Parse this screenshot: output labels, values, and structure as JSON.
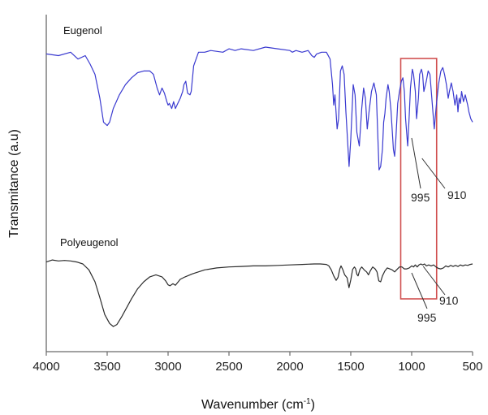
{
  "chart_data": {
    "type": "line",
    "xlabel": "Wavenumber (cm",
    "xlabel_sup": "-1",
    "xlabel_close": ")",
    "ylabel": "Transmitance (a.u)",
    "xlim": [
      4000,
      500
    ],
    "x_reversed": true,
    "xticks": [
      "4000",
      "3500",
      "3000",
      "2500",
      "2000",
      "1500",
      "1000",
      "500"
    ],
    "yticks_shown": false,
    "grid": false,
    "legend": "none",
    "series": [
      {
        "name": "Eugenol",
        "color": "#3a3ad0",
        "points": [
          [
            4000,
            0.96
          ],
          [
            3900,
            0.95
          ],
          [
            3800,
            0.97
          ],
          [
            3740,
            0.93
          ],
          [
            3680,
            0.95
          ],
          [
            3640,
            0.9
          ],
          [
            3600,
            0.84
          ],
          [
            3560,
            0.7
          ],
          [
            3530,
            0.56
          ],
          [
            3500,
            0.54
          ],
          [
            3480,
            0.56
          ],
          [
            3450,
            0.64
          ],
          [
            3400,
            0.72
          ],
          [
            3350,
            0.78
          ],
          [
            3300,
            0.82
          ],
          [
            3250,
            0.85
          ],
          [
            3200,
            0.86
          ],
          [
            3150,
            0.86
          ],
          [
            3120,
            0.84
          ],
          [
            3090,
            0.76
          ],
          [
            3070,
            0.72
          ],
          [
            3050,
            0.76
          ],
          [
            3030,
            0.73
          ],
          [
            3010,
            0.68
          ],
          [
            3000,
            0.66
          ],
          [
            2990,
            0.67
          ],
          [
            2970,
            0.64
          ],
          [
            2955,
            0.68
          ],
          [
            2940,
            0.64
          ],
          [
            2920,
            0.67
          ],
          [
            2900,
            0.7
          ],
          [
            2880,
            0.74
          ],
          [
            2870,
            0.78
          ],
          [
            2855,
            0.8
          ],
          [
            2840,
            0.73
          ],
          [
            2820,
            0.72
          ],
          [
            2810,
            0.74
          ],
          [
            2790,
            0.89
          ],
          [
            2750,
            0.97
          ],
          [
            2700,
            0.97
          ],
          [
            2650,
            0.98
          ],
          [
            2550,
            0.97
          ],
          [
            2500,
            0.99
          ],
          [
            2450,
            0.98
          ],
          [
            2400,
            0.99
          ],
          [
            2300,
            0.98
          ],
          [
            2200,
            1.0
          ],
          [
            2100,
            0.99
          ],
          [
            2000,
            0.98
          ],
          [
            1980,
            0.97
          ],
          [
            1950,
            0.98
          ],
          [
            1900,
            0.97
          ],
          [
            1850,
            0.98
          ],
          [
            1820,
            0.95
          ],
          [
            1800,
            0.94
          ],
          [
            1780,
            0.96
          ],
          [
            1740,
            0.97
          ],
          [
            1700,
            0.97
          ],
          [
            1670,
            0.93
          ],
          [
            1650,
            0.78
          ],
          [
            1640,
            0.66
          ],
          [
            1630,
            0.72
          ],
          [
            1612,
            0.52
          ],
          [
            1600,
            0.58
          ],
          [
            1585,
            0.86
          ],
          [
            1570,
            0.89
          ],
          [
            1555,
            0.84
          ],
          [
            1540,
            0.62
          ],
          [
            1514,
            0.3
          ],
          [
            1500,
            0.46
          ],
          [
            1480,
            0.78
          ],
          [
            1465,
            0.72
          ],
          [
            1450,
            0.5
          ],
          [
            1430,
            0.42
          ],
          [
            1410,
            0.64
          ],
          [
            1395,
            0.76
          ],
          [
            1380,
            0.7
          ],
          [
            1365,
            0.52
          ],
          [
            1350,
            0.62
          ],
          [
            1330,
            0.74
          ],
          [
            1310,
            0.79
          ],
          [
            1290,
            0.72
          ],
          [
            1268,
            0.28
          ],
          [
            1255,
            0.3
          ],
          [
            1240,
            0.4
          ],
          [
            1230,
            0.56
          ],
          [
            1220,
            0.61
          ],
          [
            1210,
            0.7
          ],
          [
            1195,
            0.78
          ],
          [
            1185,
            0.74
          ],
          [
            1170,
            0.63
          ],
          [
            1150,
            0.4
          ],
          [
            1140,
            0.36
          ],
          [
            1130,
            0.46
          ],
          [
            1115,
            0.67
          ],
          [
            1100,
            0.74
          ],
          [
            1085,
            0.8
          ],
          [
            1072,
            0.82
          ],
          [
            1060,
            0.74
          ],
          [
            1050,
            0.58
          ],
          [
            1033,
            0.42
          ],
          [
            1020,
            0.6
          ],
          [
            1010,
            0.76
          ],
          [
            995,
            0.87
          ],
          [
            985,
            0.84
          ],
          [
            970,
            0.74
          ],
          [
            960,
            0.58
          ],
          [
            945,
            0.7
          ],
          [
            935,
            0.84
          ],
          [
            920,
            0.87
          ],
          [
            910,
            0.84
          ],
          [
            900,
            0.74
          ],
          [
            880,
            0.8
          ],
          [
            865,
            0.86
          ],
          [
            850,
            0.84
          ],
          [
            830,
            0.66
          ],
          [
            815,
            0.52
          ],
          [
            800,
            0.64
          ],
          [
            780,
            0.78
          ],
          [
            760,
            0.86
          ],
          [
            745,
            0.88
          ],
          [
            730,
            0.84
          ],
          [
            715,
            0.78
          ],
          [
            700,
            0.7
          ],
          [
            690,
            0.74
          ],
          [
            675,
            0.79
          ],
          [
            660,
            0.74
          ],
          [
            645,
            0.66
          ],
          [
            630,
            0.72
          ],
          [
            620,
            0.62
          ],
          [
            610,
            0.7
          ],
          [
            600,
            0.67
          ],
          [
            590,
            0.74
          ],
          [
            575,
            0.68
          ],
          [
            560,
            0.72
          ],
          [
            540,
            0.66
          ],
          [
            530,
            0.62
          ],
          [
            515,
            0.58
          ],
          [
            500,
            0.56
          ]
        ]
      },
      {
        "name": "Polyeugenol",
        "color": "#2b2b2b",
        "points": [
          [
            4000,
            0.31
          ],
          [
            3950,
            0.314
          ],
          [
            3900,
            0.312
          ],
          [
            3850,
            0.313
          ],
          [
            3800,
            0.312
          ],
          [
            3750,
            0.31
          ],
          [
            3700,
            0.306
          ],
          [
            3650,
            0.294
          ],
          [
            3600,
            0.27
          ],
          [
            3560,
            0.238
          ],
          [
            3520,
            0.204
          ],
          [
            3480,
            0.186
          ],
          [
            3450,
            0.18
          ],
          [
            3420,
            0.184
          ],
          [
            3380,
            0.2
          ],
          [
            3340,
            0.218
          ],
          [
            3300,
            0.236
          ],
          [
            3250,
            0.256
          ],
          [
            3200,
            0.27
          ],
          [
            3150,
            0.28
          ],
          [
            3100,
            0.284
          ],
          [
            3050,
            0.28
          ],
          [
            3020,
            0.272
          ],
          [
            3000,
            0.264
          ],
          [
            2985,
            0.262
          ],
          [
            2960,
            0.266
          ],
          [
            2940,
            0.263
          ],
          [
            2920,
            0.269
          ],
          [
            2900,
            0.275
          ],
          [
            2860,
            0.28
          ],
          [
            2800,
            0.286
          ],
          [
            2700,
            0.294
          ],
          [
            2600,
            0.298
          ],
          [
            2500,
            0.3
          ],
          [
            2400,
            0.301
          ],
          [
            2300,
            0.302
          ],
          [
            2200,
            0.302
          ],
          [
            2100,
            0.303
          ],
          [
            2000,
            0.304
          ],
          [
            1900,
            0.305
          ],
          [
            1800,
            0.306
          ],
          [
            1750,
            0.306
          ],
          [
            1700,
            0.305
          ],
          [
            1680,
            0.302
          ],
          [
            1660,
            0.294
          ],
          [
            1640,
            0.282
          ],
          [
            1620,
            0.273
          ],
          [
            1605,
            0.279
          ],
          [
            1590,
            0.296
          ],
          [
            1580,
            0.302
          ],
          [
            1565,
            0.294
          ],
          [
            1550,
            0.284
          ],
          [
            1530,
            0.278
          ],
          [
            1515,
            0.258
          ],
          [
            1500,
            0.274
          ],
          [
            1485,
            0.295
          ],
          [
            1470,
            0.3
          ],
          [
            1460,
            0.296
          ],
          [
            1450,
            0.285
          ],
          [
            1440,
            0.282
          ],
          [
            1425,
            0.295
          ],
          [
            1410,
            0.3
          ],
          [
            1390,
            0.294
          ],
          [
            1370,
            0.29
          ],
          [
            1355,
            0.284
          ],
          [
            1340,
            0.292
          ],
          [
            1320,
            0.3
          ],
          [
            1300,
            0.296
          ],
          [
            1285,
            0.29
          ],
          [
            1270,
            0.272
          ],
          [
            1255,
            0.27
          ],
          [
            1240,
            0.282
          ],
          [
            1220,
            0.292
          ],
          [
            1200,
            0.298
          ],
          [
            1180,
            0.296
          ],
          [
            1160,
            0.294
          ],
          [
            1140,
            0.29
          ],
          [
            1120,
            0.295
          ],
          [
            1100,
            0.3
          ],
          [
            1080,
            0.3
          ],
          [
            1060,
            0.296
          ],
          [
            1040,
            0.296
          ],
          [
            1020,
            0.298
          ],
          [
            1000,
            0.302
          ],
          [
            985,
            0.3
          ],
          [
            970,
            0.304
          ],
          [
            955,
            0.3
          ],
          [
            940,
            0.304
          ],
          [
            925,
            0.306
          ],
          [
            910,
            0.304
          ],
          [
            895,
            0.306
          ],
          [
            880,
            0.302
          ],
          [
            860,
            0.304
          ],
          [
            840,
            0.302
          ],
          [
            820,
            0.304
          ],
          [
            800,
            0.3
          ],
          [
            780,
            0.297
          ],
          [
            760,
            0.296
          ],
          [
            740,
            0.298
          ],
          [
            720,
            0.302
          ],
          [
            700,
            0.3
          ],
          [
            680,
            0.303
          ],
          [
            660,
            0.301
          ],
          [
            640,
            0.303
          ],
          [
            620,
            0.301
          ],
          [
            600,
            0.304
          ],
          [
            580,
            0.302
          ],
          [
            560,
            0.304
          ],
          [
            540,
            0.303
          ],
          [
            520,
            0.305
          ],
          [
            500,
            0.306
          ]
        ]
      }
    ],
    "annotations": {
      "box_x_range": [
        1090,
        795
      ],
      "labels": [
        {
          "text": "995",
          "series": "Eugenol",
          "x": 995
        },
        {
          "text": "910",
          "series": "Eugenol",
          "x": 910
        },
        {
          "text": "995",
          "series": "Polyeugenol",
          "x": 995
        },
        {
          "text": "910",
          "series": "Polyeugenol",
          "x": 910
        }
      ],
      "box_color": "#d05050"
    },
    "axis_color": "#6a6a6a"
  }
}
